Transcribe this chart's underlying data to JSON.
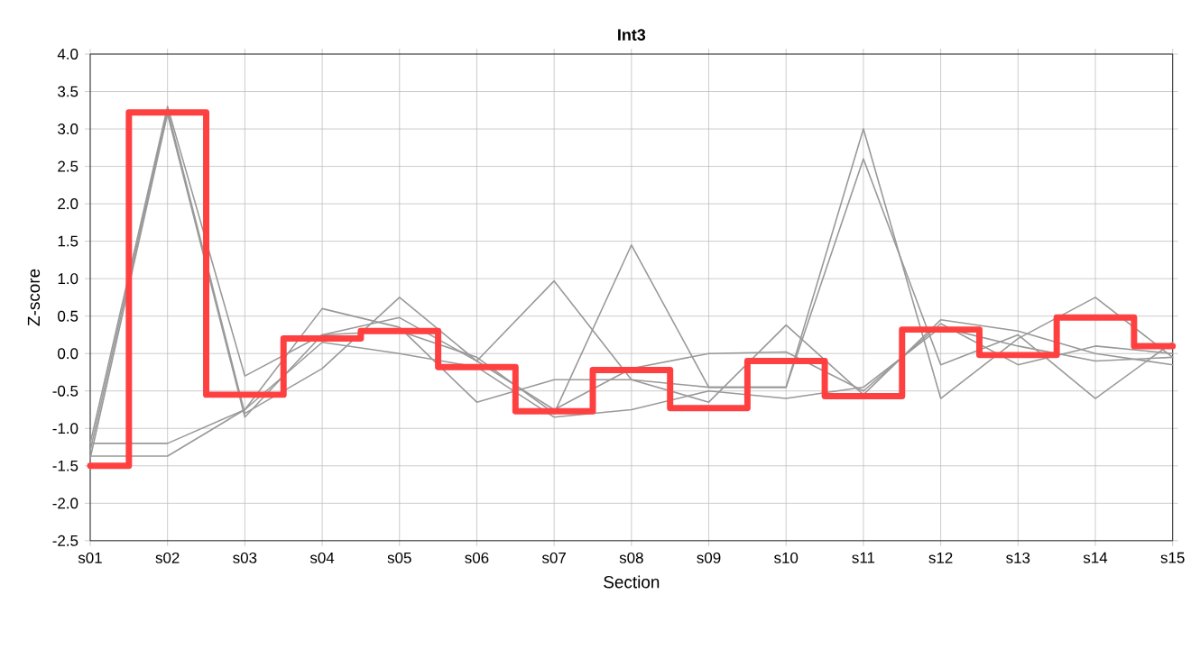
{
  "chart_data": {
    "type": "line",
    "title": "Int3",
    "xlabel": "Section",
    "ylabel": "Z-score",
    "categories": [
      "s01",
      "s02",
      "s03",
      "s04",
      "s05",
      "s06",
      "s07",
      "s08",
      "s09",
      "s10",
      "s11",
      "s12",
      "s13",
      "s14",
      "s15"
    ],
    "ylim": [
      -2.5,
      4.0
    ],
    "yticks": [
      {
        "value": -2.5,
        "label": "-2.5"
      },
      {
        "value": -2.0,
        "label": "-2.0"
      },
      {
        "value": -1.5,
        "label": "-1.5"
      },
      {
        "value": -1.0,
        "label": "-1.0"
      },
      {
        "value": -0.5,
        "label": "-0.5"
      },
      {
        "value": 0,
        "label": "0.0"
      },
      {
        "value": 0.5,
        "label": "0.5"
      },
      {
        "value": 1.0,
        "label": "1.0"
      },
      {
        "value": 1.5,
        "label": "1.5"
      },
      {
        "value": 2.0,
        "label": "2.0"
      },
      {
        "value": 2.5,
        "label": "2.5"
      },
      {
        "value": 3.0,
        "label": "3.0"
      },
      {
        "value": 3.5,
        "label": "3.5"
      },
      {
        "value": 4.0,
        "label": "4.0"
      }
    ],
    "grid": true,
    "marker": "none",
    "line_style": "solid",
    "series": [
      {
        "color": "#999999",
        "values": [
          -1.2,
          3.3,
          -0.3,
          0.25,
          0.3,
          -0.05,
          -0.8,
          1.45,
          -0.45,
          -0.45,
          3.0,
          -0.6,
          0.2,
          0.75,
          -0.05
        ]
      },
      {
        "color": "#999999",
        "values": [
          -1.3,
          3.25,
          -0.8,
          -0.2,
          0.75,
          -0.1,
          0.97,
          -0.35,
          -0.45,
          -0.45,
          2.6,
          -0.15,
          0.25,
          -0.6,
          0.15
        ]
      },
      {
        "color": "#999999",
        "values": [
          -1.2,
          -1.2,
          -0.75,
          0.6,
          0.35,
          -0.65,
          -0.35,
          -0.35,
          -0.65,
          0.38,
          -0.55,
          0.45,
          0.3,
          0.0,
          -0.15
        ]
      },
      {
        "color": "#999999",
        "values": [
          -1.37,
          -1.37,
          -0.75,
          0.15,
          0.0,
          -0.18,
          -0.85,
          -0.75,
          -0.5,
          -0.6,
          -0.45,
          0.35,
          0.1,
          -0.1,
          -0.05
        ]
      },
      {
        "color": "#999999",
        "values": [
          -1.4,
          3.2,
          -0.85,
          0.25,
          0.48,
          -0.1,
          -0.75,
          -0.2,
          0.0,
          0.02,
          -0.5,
          0.4,
          -0.15,
          0.1,
          0.0
        ]
      },
      {
        "type": "step",
        "color": "#ff4040",
        "values": [
          -1.5,
          3.22,
          -0.55,
          0.2,
          0.3,
          -0.18,
          -0.77,
          -0.22,
          -0.73,
          -0.1,
          -0.57,
          0.32,
          -0.02,
          0.48,
          0.1
        ]
      }
    ]
  }
}
